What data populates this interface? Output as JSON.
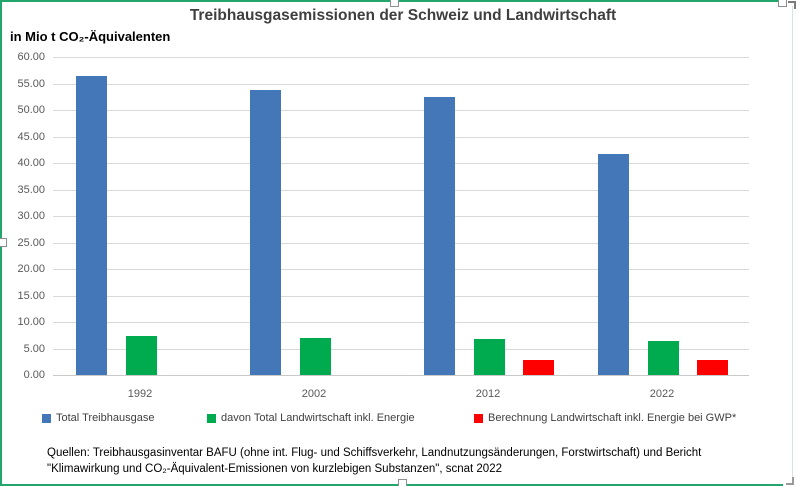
{
  "chart": {
    "title": "Treibhausgasemissionen der Schweiz und Landwirtschaft",
    "subtitle": "in Mio t CO₂-Äquivalenten",
    "selection_border_color": "#23a56b"
  },
  "chart_data": {
    "type": "bar",
    "title": "Treibhausgasemissionen der Schweiz und Landwirtschaft",
    "subtitle_unit": "in Mio t CO₂-Äquivalenten",
    "categories": [
      "1992",
      "2002",
      "2012",
      "2022"
    ],
    "series": [
      {
        "name": "Total Treibhausgase",
        "color": "#4477b7",
        "values": [
          56.5,
          53.8,
          52.5,
          41.7
        ]
      },
      {
        "name": "davon Total Landwirtschaft inkl. Energie",
        "color": "#00ab4f",
        "values": [
          7.4,
          6.9,
          6.8,
          6.5
        ]
      },
      {
        "name": "Berechnung Landwirtschaft inkl. Energie bei GWP*",
        "color": "#ff0000",
        "values": [
          null,
          null,
          2.9,
          2.8
        ]
      }
    ],
    "ylim": [
      0,
      60
    ],
    "ytick_step": 5,
    "ytick_labels": [
      "0.00",
      "5.00",
      "10.00",
      "15.00",
      "20.00",
      "25.00",
      "30.00",
      "35.00",
      "40.00",
      "45.00",
      "50.00",
      "55.00",
      "60.00"
    ],
    "grid": true,
    "gridline_color": "#d9d9d9",
    "axisline_color": "#c9c9c9",
    "legend_position": "bottom"
  },
  "source": {
    "line1": "Quellen: Treibhausgasinventar BAFU (ohne int. Flug- und Schiffsverkehr, Landnutzungsänderungen, Forstwirtschaft) und Bericht",
    "line2": "\"Klimawirkung und CO₂-Äquivalent-Emissionen von kurzlebigen Substanzen\", scnat 2022"
  }
}
